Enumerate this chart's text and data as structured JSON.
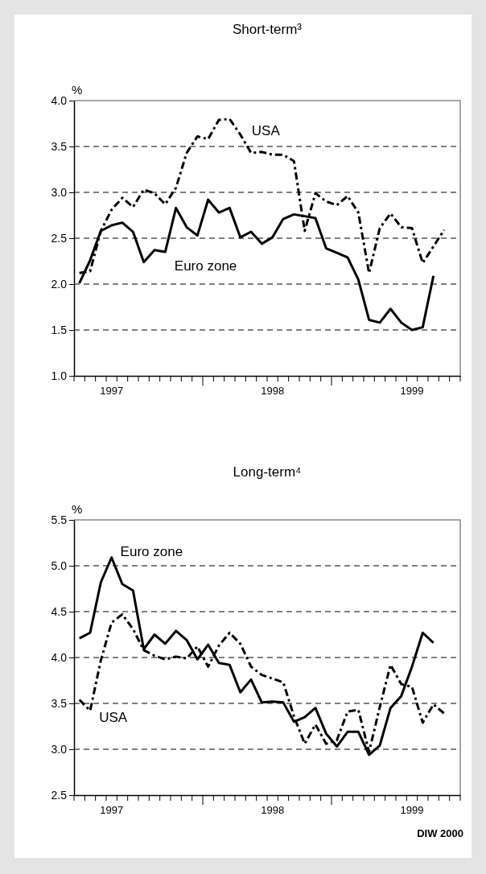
{
  "chart_data": [
    {
      "type": "line",
      "title": "Short-term³",
      "ylabel": "%",
      "ylim": [
        1.0,
        4.0
      ],
      "yticks": [
        {
          "value": 1.0,
          "label": "1.0"
        },
        {
          "value": 1.5,
          "label": "1.5"
        },
        {
          "value": 2.0,
          "label": "2.0"
        },
        {
          "value": 2.5,
          "label": "2.5"
        },
        {
          "value": 3.0,
          "label": "3.0"
        },
        {
          "value": 3.5,
          "label": "3.5"
        },
        {
          "value": 4.0,
          "label": "4.0"
        }
      ],
      "categories": [
        null,
        null,
        null,
        "1997",
        null,
        null,
        null,
        null,
        null,
        null,
        null,
        null,
        null,
        null,
        null,
        null,
        null,
        null,
        "1998",
        null,
        null,
        null,
        null,
        null,
        null,
        null,
        null,
        null,
        null,
        null,
        null,
        "1999",
        null,
        null,
        null,
        null
      ],
      "grid": "y",
      "legend": false,
      "series": [
        {
          "name": "USA",
          "color": "#000000",
          "line_style": "dashed",
          "values": [
            2.12,
            2.14,
            2.58,
            2.81,
            2.94,
            2.84,
            3.03,
            2.99,
            2.87,
            3.05,
            3.43,
            3.61,
            3.58,
            3.79,
            3.8,
            3.63,
            3.43,
            3.44,
            3.41,
            3.41,
            3.34,
            2.58,
            2.99,
            2.9,
            2.86,
            2.96,
            2.78,
            2.12,
            2.61,
            2.77,
            2.62,
            2.61,
            2.23,
            2.41,
            2.59,
            null
          ]
        },
        {
          "name": "Euro zone",
          "color": "#000000",
          "line_style": "solid",
          "values": [
            2.01,
            2.26,
            2.58,
            2.64,
            2.67,
            2.57,
            2.24,
            2.37,
            2.35,
            2.83,
            2.62,
            2.53,
            2.92,
            2.78,
            2.83,
            2.51,
            2.57,
            2.44,
            2.51,
            2.71,
            2.76,
            2.74,
            2.72,
            2.39,
            2.34,
            2.29,
            2.05,
            1.61,
            1.58,
            1.73,
            1.58,
            1.5,
            1.53,
            2.09,
            null,
            null
          ]
        }
      ]
    },
    {
      "type": "line",
      "title": "Long-term⁴",
      "ylabel": "%",
      "ylim": [
        2.5,
        5.5
      ],
      "yticks": [
        {
          "value": 2.5,
          "label": "2.5"
        },
        {
          "value": 3.0,
          "label": "3.0"
        },
        {
          "value": 3.5,
          "label": "3.5"
        },
        {
          "value": 4.0,
          "label": "4.0"
        },
        {
          "value": 4.5,
          "label": "4.5"
        },
        {
          "value": 5.0,
          "label": "5.0"
        },
        {
          "value": 5.5,
          "label": "5.5"
        }
      ],
      "categories": [
        null,
        null,
        null,
        "1997",
        null,
        null,
        null,
        null,
        null,
        null,
        null,
        null,
        null,
        null,
        null,
        null,
        null,
        null,
        "1998",
        null,
        null,
        null,
        null,
        null,
        null,
        null,
        null,
        null,
        null,
        null,
        null,
        "1999",
        null,
        null,
        null,
        null
      ],
      "grid": "y",
      "legend": false,
      "series": [
        {
          "name": "Euro zone",
          "color": "#000000",
          "line_style": "solid",
          "values": [
            4.21,
            4.27,
            4.82,
            5.09,
            4.8,
            4.73,
            4.09,
            4.25,
            4.15,
            4.29,
            4.19,
            3.98,
            4.14,
            3.94,
            3.92,
            3.62,
            3.76,
            3.51,
            3.52,
            3.51,
            3.3,
            3.35,
            3.45,
            3.17,
            3.03,
            3.19,
            3.19,
            2.94,
            3.04,
            3.45,
            3.58,
            3.9,
            4.27,
            4.16,
            null,
            null
          ]
        },
        {
          "name": "USA",
          "color": "#000000",
          "line_style": "dashed",
          "values": [
            3.54,
            3.42,
            3.97,
            4.38,
            4.47,
            4.31,
            4.08,
            4.02,
            3.98,
            4.01,
            3.99,
            4.12,
            3.9,
            4.13,
            4.27,
            4.15,
            3.9,
            3.81,
            3.77,
            3.73,
            3.36,
            3.06,
            3.27,
            3.06,
            3.1,
            3.41,
            3.43,
            2.97,
            3.46,
            3.92,
            3.71,
            3.68,
            3.29,
            3.49,
            3.39,
            null
          ]
        }
      ],
      "annotations": [
        "DIW 2000"
      ]
    }
  ]
}
